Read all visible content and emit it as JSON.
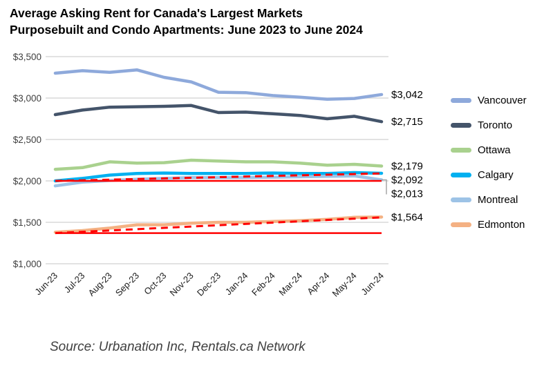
{
  "title": {
    "line1": "Average Asking Rent for Canada's Largest Markets",
    "line2": "Purposebuilt and Condo Apartments: June 2023 to June 2024"
  },
  "source": "Source: Urbanation Inc, Rentals.ca Network",
  "chart_data": {
    "type": "line",
    "title": "Average Asking Rent for Canada's Largest Markets — Purposebuilt and Condo Apartments: June 2023 to June 2024",
    "xlabel": "",
    "ylabel": "",
    "grid": true,
    "legend_position": "right",
    "x_labels": [
      "Jun-23",
      "Jul-23",
      "Aug-23",
      "Sep-23",
      "Oct-23",
      "Nov-23",
      "Dec-23",
      "Jan-24",
      "Feb-24",
      "Mar-24",
      "Apr-24",
      "May-24",
      "Jun-24"
    ],
    "y_axis": {
      "min": 1000,
      "max": 3500,
      "step": 500,
      "tick_labels": [
        "$1,000",
        "$1,500",
        "$2,000",
        "$2,500",
        "$3,000",
        "$3,500"
      ]
    },
    "series": [
      {
        "name": "Vancouver",
        "color": "#8EA9DB",
        "end_label": "$3,042",
        "values": [
          3300,
          3330,
          3310,
          3340,
          3250,
          3195,
          3070,
          3065,
          3030,
          3010,
          2985,
          2995,
          3042
        ]
      },
      {
        "name": "Toronto",
        "color": "#44546A",
        "end_label": "$2,715",
        "values": [
          2800,
          2855,
          2890,
          2895,
          2900,
          2910,
          2825,
          2830,
          2810,
          2790,
          2750,
          2780,
          2715
        ]
      },
      {
        "name": "Ottawa",
        "color": "#A9D18E",
        "end_label": "$2,179",
        "values": [
          2140,
          2160,
          2230,
          2215,
          2220,
          2250,
          2240,
          2230,
          2230,
          2215,
          2190,
          2200,
          2179
        ]
      },
      {
        "name": "Calgary",
        "color": "#00B0F0",
        "end_label": "$2,092",
        "values": [
          2000,
          2030,
          2070,
          2090,
          2095,
          2090,
          2090,
          2090,
          2095,
          2090,
          2090,
          2100,
          2092
        ]
      },
      {
        "name": "Montreal",
        "color": "#9DC3E6",
        "end_label": "$2,013",
        "values": [
          1940,
          1985,
          2005,
          2020,
          2030,
          2040,
          2040,
          2040,
          2045,
          2050,
          2055,
          2060,
          2013
        ]
      },
      {
        "name": "Edmonton",
        "color": "#F4B183",
        "end_label": "$1,564",
        "values": [
          1380,
          1400,
          1430,
          1470,
          1470,
          1490,
          1500,
          1500,
          1510,
          1520,
          1535,
          1560,
          1564
        ]
      }
    ],
    "annotations": [
      {
        "name": "calgary-baseline",
        "style": "solid",
        "color": "#FF0000",
        "from": 2000,
        "to": 2000
      },
      {
        "name": "calgary-trend",
        "style": "dashed",
        "color": "#FF0000",
        "from": 2000,
        "to": 2090
      },
      {
        "name": "edmonton-baseline",
        "style": "solid",
        "color": "#FF0000",
        "from": 1370,
        "to": 1370
      },
      {
        "name": "edmonton-trend",
        "style": "dashed",
        "color": "#FF0000",
        "from": 1370,
        "to": 1560
      }
    ]
  }
}
